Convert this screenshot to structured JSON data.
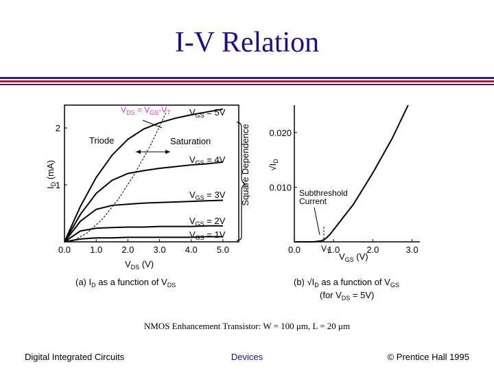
{
  "slide": {
    "title": "I-V Relation",
    "note": "NMOS Enhancement Transistor: W = 100 μm, L = 20 μm",
    "footer_left": "Digital Integrated Circuits",
    "footer_center": "Devices",
    "footer_right": "© Prentice Hall 1995"
  },
  "colors": {
    "title": "#1a0f8a",
    "accent_red": "#b01c2e",
    "boundary_label": "#d63aa8"
  },
  "chart_data": [
    {
      "type": "line",
      "caption": "(a) I_D as a function of V_DS",
      "xlabel": "V_DS (V)",
      "ylabel": "I_D (mA)",
      "xlim": [
        0,
        5.5
      ],
      "ylim": [
        0,
        2.4
      ],
      "xticks": [
        "0.0",
        "1.0",
        "2.0",
        "3.0",
        "4.0",
        "5.0"
      ],
      "yticks": [
        "1",
        "2"
      ],
      "series": [
        {
          "name": "V_GS = 5V",
          "label_main": "V",
          "label_sub": "GS",
          "label_tail": " = 5V",
          "x": [
            0,
            0.5,
            1.0,
            1.5,
            2.0,
            2.5,
            3.0,
            3.5,
            4.0,
            4.5,
            5.0
          ],
          "y": [
            0,
            0.62,
            1.13,
            1.52,
            1.8,
            1.98,
            2.09,
            2.17,
            2.23,
            2.28,
            2.33
          ]
        },
        {
          "name": "V_GS = 4V",
          "label_main": "V",
          "label_sub": "GS",
          "label_tail": " = 4V",
          "x": [
            0,
            0.5,
            1.0,
            1.5,
            2.0,
            2.5,
            3.0,
            3.5,
            4.0,
            4.5,
            5.0
          ],
          "y": [
            0,
            0.48,
            0.85,
            1.08,
            1.2,
            1.25,
            1.29,
            1.32,
            1.35,
            1.37,
            1.4
          ]
        },
        {
          "name": "V_GS = 3V",
          "label_main": "V",
          "label_sub": "GS",
          "label_tail": " = 3V",
          "x": [
            0,
            0.5,
            1.0,
            1.5,
            2.0,
            2.5,
            3.0,
            3.5,
            4.0,
            4.5,
            5.0
          ],
          "y": [
            0,
            0.36,
            0.57,
            0.64,
            0.66,
            0.68,
            0.69,
            0.7,
            0.71,
            0.72,
            0.73
          ]
        },
        {
          "name": "V_GS = 2V",
          "label_main": "V",
          "label_sub": "GS",
          "label_tail": " = 2V",
          "x": [
            0,
            0.5,
            1.0,
            1.5,
            2.0,
            2.5,
            3.0,
            3.5,
            4.0,
            4.5,
            5.0
          ],
          "y": [
            0,
            0.19,
            0.24,
            0.25,
            0.26,
            0.26,
            0.27,
            0.27,
            0.27,
            0.28,
            0.28
          ]
        },
        {
          "name": "V_GS = 1V",
          "label_main": "V",
          "label_sub": "GS",
          "label_tail": " = 1V",
          "x": [
            0,
            0.5,
            1.0,
            1.5,
            2.0,
            2.5,
            3.0,
            3.5,
            4.0,
            4.5,
            5.0
          ],
          "y": [
            0,
            0.05,
            0.07,
            0.07,
            0.08,
            0.08,
            0.08,
            0.08,
            0.08,
            0.09,
            0.09
          ]
        }
      ],
      "boundary": {
        "name": "V_DS = V_GS - V_T",
        "x": [
          0.3,
          0.7,
          1.2,
          1.7,
          2.2,
          2.7,
          3.2
        ],
        "y": [
          0.03,
          0.15,
          0.4,
          0.75,
          1.18,
          1.68,
          2.26
        ]
      },
      "annotations": {
        "triode": "Triode",
        "saturation": "Saturation",
        "square": "Square Dependence"
      }
    },
    {
      "type": "line",
      "caption": "(b) √I_D as a function of V_GS",
      "caption2": "(for V_DS = 5V)",
      "xlabel": "V_GS (V)",
      "ylabel": "√I_D",
      "xlim": [
        0,
        3.2
      ],
      "ylim": [
        0,
        0.025
      ],
      "xticks": [
        "0.0",
        "1.0",
        "2.0",
        "3.0"
      ],
      "yticks": [
        "0.010",
        "0.020"
      ],
      "series": [
        {
          "name": "√I_D",
          "x": [
            0.0,
            0.5,
            0.7,
            0.8,
            0.9,
            1.0,
            1.5,
            2.0,
            2.5,
            2.9
          ],
          "y": [
            0.0,
            0.0,
            0.0002,
            0.0006,
            0.0013,
            0.0022,
            0.0068,
            0.0126,
            0.019,
            0.025
          ]
        }
      ],
      "annotations": {
        "subthreshold_1": "Subthreshold",
        "subthreshold_2": "Current",
        "vt": "V_T"
      }
    }
  ]
}
